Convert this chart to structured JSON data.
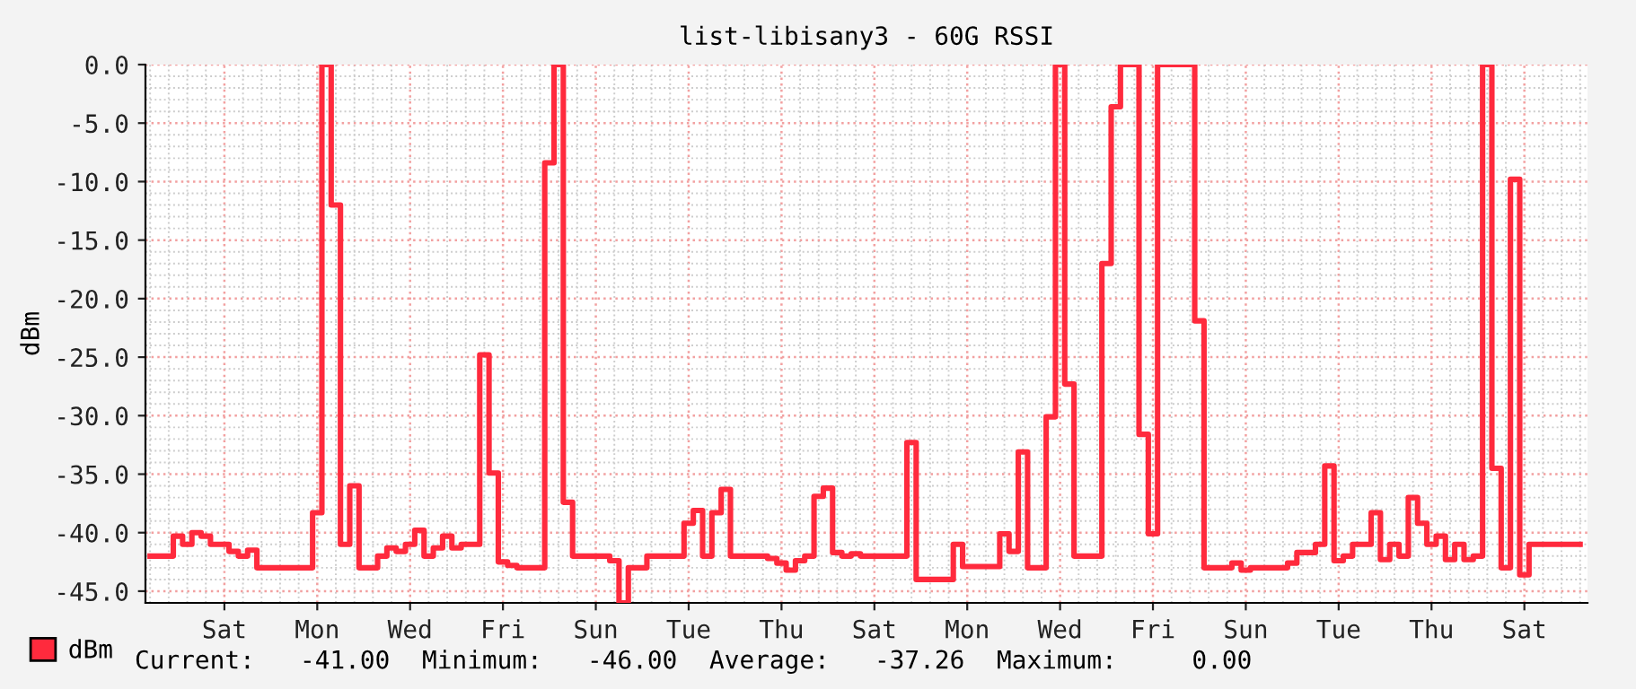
{
  "chart_data": {
    "type": "step",
    "title": "list-libisany3 - 60G RSSI",
    "ylabel": "dBm",
    "categories": [
      null,
      null,
      null,
      null,
      null,
      null,
      null,
      null,
      "Sat",
      null,
      null,
      null,
      null,
      null,
      null,
      null,
      null,
      null,
      "Mon",
      null,
      null,
      null,
      null,
      null,
      null,
      null,
      null,
      null,
      "Wed",
      null,
      null,
      null,
      null,
      null,
      null,
      null,
      null,
      null,
      "Fri",
      null,
      null,
      null,
      null,
      null,
      null,
      null,
      null,
      null,
      "Sun",
      null,
      null,
      null,
      null,
      null,
      null,
      null,
      null,
      null,
      "Tue",
      null,
      null,
      null,
      null,
      null,
      null,
      null,
      null,
      null,
      "Thu",
      null,
      null,
      null,
      null,
      null,
      null,
      null,
      null,
      null,
      "Sat",
      null,
      null,
      null,
      null,
      null,
      null,
      null,
      null,
      null,
      "Mon",
      null,
      null,
      null,
      null,
      null,
      null,
      null,
      null,
      null,
      "Wed",
      null,
      null,
      null,
      null,
      null,
      null,
      null,
      null,
      null,
      "Fri",
      null,
      null,
      null,
      null,
      null,
      null,
      null,
      null,
      null,
      "Sun",
      null,
      null,
      null,
      null,
      null,
      null,
      null,
      null,
      null,
      "Tue",
      null,
      null,
      null,
      null,
      null,
      null,
      null,
      null,
      null,
      "Thu",
      null,
      null,
      null,
      null,
      null,
      null,
      null,
      null,
      null,
      "Sat",
      null,
      null,
      null,
      null,
      null,
      null
    ],
    "series": [
      {
        "name": "dBm",
        "color": "#ff2a3d",
        "values": [
          -42,
          -42,
          -42,
          -40.3,
          -41,
          -40,
          -40.3,
          -41,
          -41,
          -41.6,
          -42,
          -41.5,
          -43,
          -43,
          -43,
          -43,
          -43,
          -43,
          -38.3,
          0,
          -12,
          -41,
          -36,
          -43,
          -43,
          -42,
          -41.3,
          -41.6,
          -41,
          -39.8,
          -42,
          -41.3,
          -40.3,
          -41.3,
          -41,
          -41,
          -24.8,
          -34.9,
          -42.5,
          -42.8,
          -43,
          -43,
          -43,
          -8.4,
          0,
          -37.4,
          -42,
          -42,
          -42,
          -42,
          -42.4,
          -46,
          -43,
          -43,
          -42,
          -42,
          -42,
          -42,
          -39.2,
          -38.1,
          -42,
          -38.3,
          -36.3,
          -42,
          -42,
          -42,
          -42,
          -42.2,
          -42.6,
          -43.2,
          -42.4,
          -42,
          -36.9,
          -36.2,
          -41.7,
          -42,
          -41.8,
          -42,
          -42,
          -42,
          -42,
          -42,
          -32.3,
          -44,
          -44,
          -44,
          -44,
          -41,
          -42.9,
          -42.9,
          -42.9,
          -42.9,
          -40.1,
          -41.6,
          -33.1,
          -43,
          -43,
          -30.1,
          0,
          -27.3,
          -42,
          -42,
          -42,
          -17,
          -3.6,
          0,
          0,
          -31.6,
          -40.1,
          0,
          0,
          0,
          0,
          -21.9,
          -43,
          -43,
          -43,
          -42.6,
          -43.2,
          -43,
          -43,
          -43,
          -43,
          -42.6,
          -41.7,
          -41.7,
          -41,
          -34.3,
          -42.4,
          -42,
          -41,
          -41,
          -38.3,
          -42.3,
          -41,
          -42,
          -37,
          -39.2,
          -41,
          -40.3,
          -42.3,
          -41,
          -42.3,
          -42,
          0,
          -34.5,
          -43,
          -9.8,
          -43.6,
          -41,
          -41,
          -41,
          -41,
          -41,
          -41
        ]
      }
    ],
    "ylim": [
      -46,
      0
    ],
    "yticks": [
      {
        "value": 0,
        "label": "0.0"
      },
      {
        "value": -5,
        "label": "-5.0"
      },
      {
        "value": -10,
        "label": "-10.0"
      },
      {
        "value": -15,
        "label": "-15.0"
      },
      {
        "value": -20,
        "label": "-20.0"
      },
      {
        "value": -25,
        "label": "-25.0"
      },
      {
        "value": -30,
        "label": "-30.0"
      },
      {
        "value": -35,
        "label": "-35.0"
      },
      {
        "value": -40,
        "label": "-40.0"
      },
      {
        "value": -45,
        "label": "-45.0"
      }
    ],
    "grid": true,
    "legend": "bottom",
    "line_style": "solid",
    "marker": "none",
    "annotations": [
      "Current:   -41.00",
      "Minimum:   -46.00",
      "Average:   -37.26",
      "Maximum:     0.00"
    ]
  }
}
